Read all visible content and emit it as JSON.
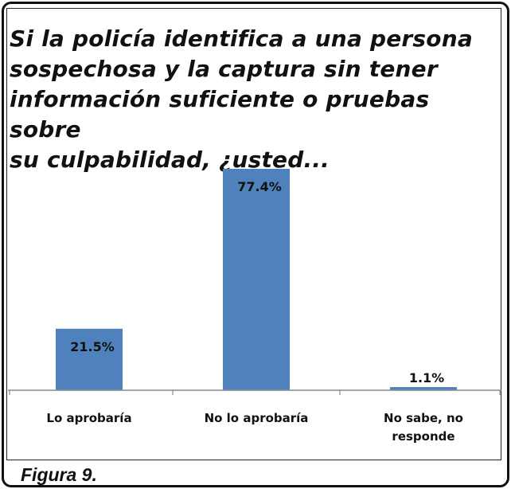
{
  "caption": "Figura 9.",
  "colors": {
    "bar": "#4f81bd",
    "axis": "#8a8a8a",
    "text": "#111111"
  },
  "chart_data": {
    "type": "bar",
    "title_lines": [
      "Si la policía identifica a una persona",
      "sospechosa y la captura sin tener",
      "información suficiente o pruebas sobre",
      "su culpabilidad, ¿usted..."
    ],
    "categories": [
      [
        "Lo aprobaría"
      ],
      [
        "No lo aprobaría"
      ],
      [
        "No sabe, no",
        "responde"
      ]
    ],
    "values": [
      21.5,
      77.4,
      1.1
    ],
    "value_labels": [
      "21.5%",
      "77.4%",
      "1.1%"
    ],
    "xlabel": "",
    "ylabel": "",
    "ylim": [
      0,
      77.4
    ],
    "grid": false,
    "legend": "none"
  }
}
